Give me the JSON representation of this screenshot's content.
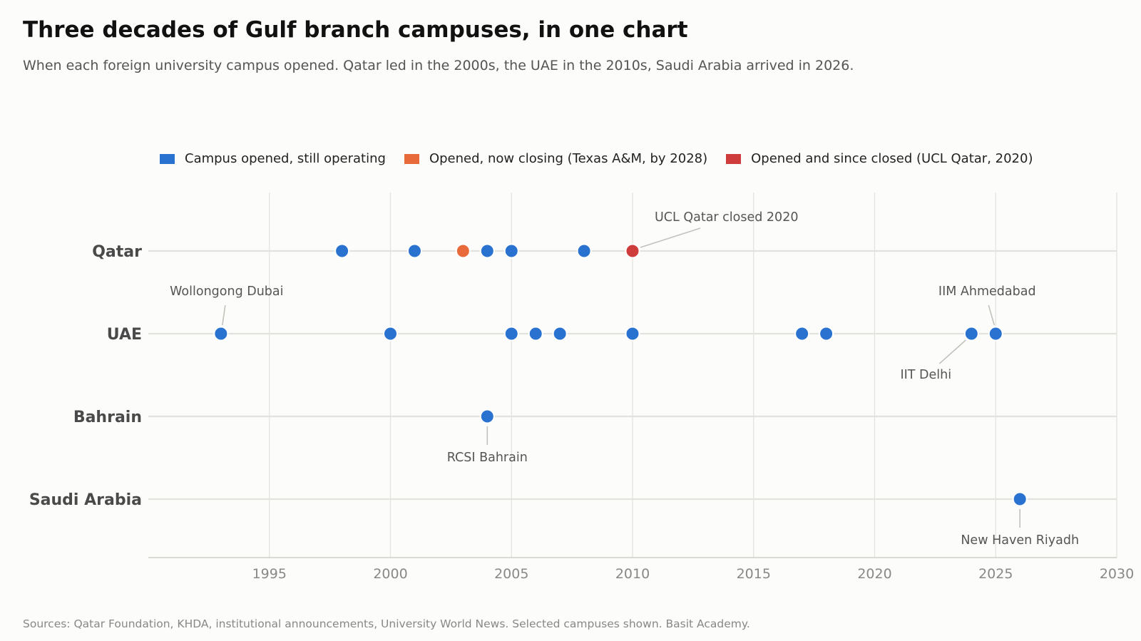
{
  "chart_data": {
    "type": "scatter",
    "title": "Three decades of Gulf branch campuses, in one chart",
    "subtitle": "When each foreign university campus opened. Qatar led in the 2000s, the UAE in the 2010s, Saudi Arabia arrived in 2026.",
    "source": "Sources: Qatar Foundation, KHDA, institutional announcements, University World News. Selected campuses shown. Basit Academy.",
    "categories": [
      "Qatar",
      "UAE",
      "Bahrain",
      "Saudi Arabia"
    ],
    "xlim": [
      1990,
      2030
    ],
    "xticks": [
      1995,
      2000,
      2005,
      2010,
      2015,
      2020,
      2025,
      2030
    ],
    "grid": true,
    "legend_position": "top",
    "legend": [
      {
        "key": "open",
        "label": "Campus opened, still operating",
        "color": "#2a72d0"
      },
      {
        "key": "closing",
        "label": "Opened, now closing (Texas A&M, by 2028)",
        "color": "#e8693a"
      },
      {
        "key": "closed",
        "label": "Opened and since closed (UCL Qatar, 2020)",
        "color": "#cf3c3c"
      }
    ],
    "points": [
      {
        "category": "Qatar",
        "x": 1998,
        "status": "open"
      },
      {
        "category": "Qatar",
        "x": 2001,
        "status": "open"
      },
      {
        "category": "Qatar",
        "x": 2003,
        "status": "closing"
      },
      {
        "category": "Qatar",
        "x": 2004,
        "status": "open"
      },
      {
        "category": "Qatar",
        "x": 2005,
        "status": "open"
      },
      {
        "category": "Qatar",
        "x": 2008,
        "status": "open"
      },
      {
        "category": "Qatar",
        "x": 2010,
        "status": "closed"
      },
      {
        "category": "UAE",
        "x": 1993,
        "status": "open"
      },
      {
        "category": "UAE",
        "x": 2000,
        "status": "open"
      },
      {
        "category": "UAE",
        "x": 2005,
        "status": "open"
      },
      {
        "category": "UAE",
        "x": 2006,
        "status": "open"
      },
      {
        "category": "UAE",
        "x": 2007,
        "status": "open"
      },
      {
        "category": "UAE",
        "x": 2010,
        "status": "open"
      },
      {
        "category": "UAE",
        "x": 2017,
        "status": "open"
      },
      {
        "category": "UAE",
        "x": 2018,
        "status": "open"
      },
      {
        "category": "UAE",
        "x": 2024,
        "status": "open"
      },
      {
        "category": "UAE",
        "x": 2025,
        "status": "open"
      },
      {
        "category": "Bahrain",
        "x": 2004,
        "status": "open"
      },
      {
        "category": "Saudi Arabia",
        "x": 2026,
        "status": "open"
      }
    ],
    "annotations": [
      {
        "text": "UCL Qatar closed 2020",
        "category": "Qatar",
        "x": 2010,
        "placement": "above-right"
      },
      {
        "text": "Wollongong Dubai",
        "category": "UAE",
        "x": 1993,
        "placement": "above"
      },
      {
        "text": "IIM Ahmedabad",
        "category": "UAE",
        "x": 2025,
        "placement": "above-left"
      },
      {
        "text": "IIT Delhi",
        "category": "UAE",
        "x": 2024,
        "placement": "below-left"
      },
      {
        "text": "RCSI Bahrain",
        "category": "Bahrain",
        "x": 2004,
        "placement": "below"
      },
      {
        "text": "New Haven Riyadh",
        "category": "Saudi Arabia",
        "x": 2026,
        "placement": "below"
      }
    ]
  }
}
